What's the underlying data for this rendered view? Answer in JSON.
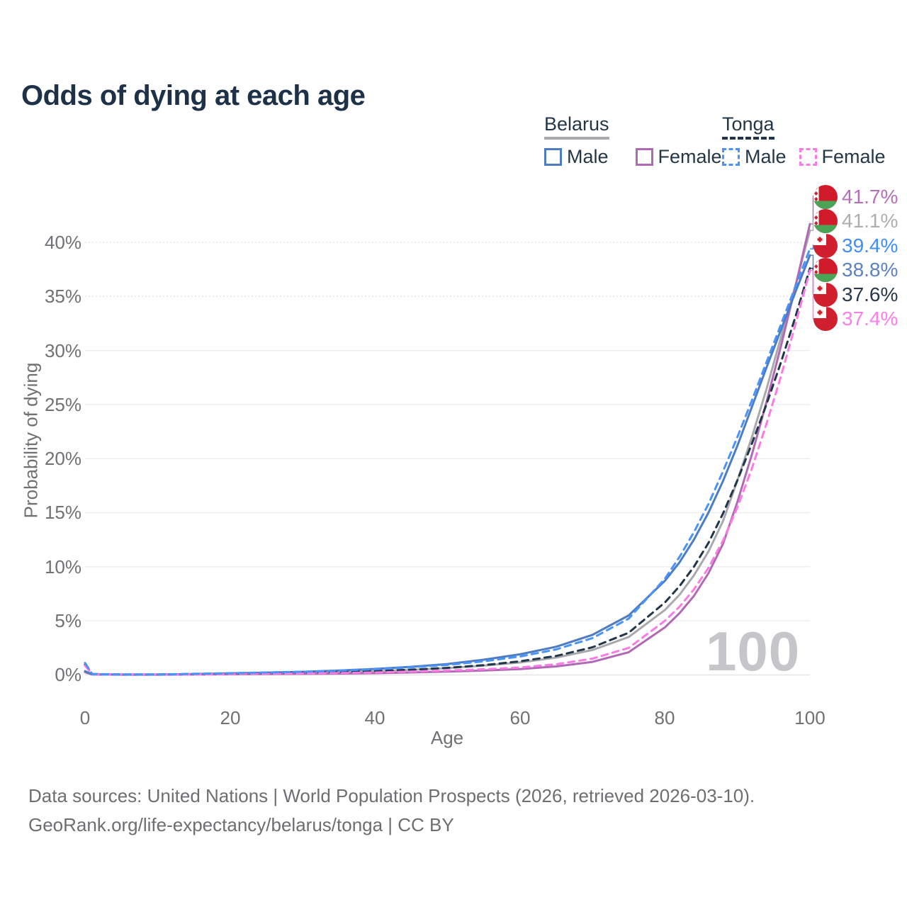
{
  "title": "Odds of dying at each age",
  "legend": {
    "belarus": {
      "label": "Belarus",
      "male": "Male",
      "female": "Female"
    },
    "tonga": {
      "label": "Tonga",
      "male": "Male",
      "female": "Female"
    }
  },
  "watermark": "100",
  "footer": {
    "line1": "Data sources: United Nations | World Population Prospects (2026, retrieved 2026-03-10).",
    "line2": "GeoRank.org/life-expectancy/belarus/tonga | CC BY"
  },
  "colors": {
    "belarus_male": "#4d7cc3",
    "belarus_female": "#b069b5",
    "belarus_both": "#a9a9ad",
    "tonga_male": "#4a93fa",
    "tonga_female": "#fb7ae4",
    "tonga_both": "#213649",
    "title_text": "#1d3148",
    "axis_text": "#707075",
    "grid": "#ececee",
    "watermark": "#c6c6ca"
  },
  "chart_data": {
    "type": "line",
    "title": "Odds of dying at each age",
    "xlabel": "Age",
    "ylabel": "Probability of dying",
    "xlim": [
      0,
      100
    ],
    "ylim_percent": [
      0,
      44
    ],
    "grid": true,
    "legend_position": "top-right",
    "x_tick_labels": [
      "0",
      "20",
      "40",
      "60",
      "80",
      "100"
    ],
    "y_tick_labels": [
      "0%",
      "5%",
      "10%",
      "15%",
      "20%",
      "25%",
      "30%",
      "35%",
      "40%"
    ],
    "y_tick_values": [
      0,
      5,
      10,
      15,
      20,
      25,
      30,
      35,
      40
    ],
    "ages": [
      0,
      1,
      5,
      10,
      15,
      20,
      25,
      30,
      35,
      40,
      45,
      50,
      55,
      60,
      65,
      70,
      75,
      80,
      82,
      84,
      86,
      88,
      90,
      92,
      94,
      96,
      98,
      100
    ],
    "series": [
      {
        "id": "belarus_both",
        "name": "Belarus (both sexes)",
        "country": "Belarus",
        "sex": "both",
        "color": "#a9a9ad",
        "dash": "solid",
        "values": [
          0.3,
          0.04,
          0.02,
          0.02,
          0.05,
          0.09,
          0.13,
          0.18,
          0.25,
          0.34,
          0.46,
          0.62,
          0.85,
          1.15,
          1.6,
          2.3,
          3.5,
          6.0,
          7.4,
          9.2,
          11.4,
          14.2,
          18.0,
          22.0,
          26.4,
          31.2,
          36.0,
          41.1
        ],
        "end_value_pct": 41.1
      },
      {
        "id": "belarus_female",
        "name": "Belarus Female",
        "country": "Belarus",
        "sex": "female",
        "color": "#b069b5",
        "dash": "solid",
        "values": [
          0.25,
          0.03,
          0.02,
          0.02,
          0.03,
          0.05,
          0.07,
          0.09,
          0.12,
          0.16,
          0.22,
          0.3,
          0.4,
          0.54,
          0.78,
          1.2,
          2.1,
          4.4,
          5.7,
          7.3,
          9.4,
          12.1,
          16.0,
          20.4,
          25.2,
          30.4,
          35.9,
          41.7
        ],
        "end_value_pct": 41.7
      },
      {
        "id": "belarus_male",
        "name": "Belarus Male",
        "country": "Belarus",
        "sex": "male",
        "color": "#4d7cc3",
        "dash": "solid",
        "values": [
          0.35,
          0.05,
          0.03,
          0.03,
          0.08,
          0.14,
          0.2,
          0.28,
          0.4,
          0.55,
          0.75,
          1.0,
          1.4,
          1.9,
          2.6,
          3.7,
          5.5,
          8.7,
          10.4,
          12.5,
          15.0,
          17.9,
          21.2,
          24.8,
          28.4,
          31.9,
          35.4,
          38.8
        ],
        "end_value_pct": 38.8
      },
      {
        "id": "tonga_both",
        "name": "Tonga (both sexes)",
        "country": "Tonga",
        "sex": "both",
        "color": "#213649",
        "dash": "dashed",
        "values": [
          0.95,
          0.07,
          0.03,
          0.03,
          0.07,
          0.11,
          0.15,
          0.2,
          0.27,
          0.36,
          0.48,
          0.65,
          0.9,
          1.25,
          1.75,
          2.55,
          3.9,
          6.7,
          8.2,
          10.0,
          12.2,
          14.9,
          18.0,
          21.4,
          25.0,
          28.9,
          33.1,
          37.6
        ],
        "end_value_pct": 37.6
      },
      {
        "id": "tonga_female",
        "name": "Tonga Female",
        "country": "Tonga",
        "sex": "female",
        "color": "#fb7ae4",
        "dash": "dashed",
        "values": [
          0.85,
          0.06,
          0.03,
          0.03,
          0.05,
          0.08,
          0.1,
          0.13,
          0.17,
          0.22,
          0.3,
          0.4,
          0.52,
          0.68,
          0.98,
          1.5,
          2.5,
          5.0,
          6.3,
          7.9,
          9.9,
          12.4,
          15.5,
          19.1,
          23.2,
          27.6,
          32.4,
          37.4
        ],
        "end_value_pct": 37.4
      },
      {
        "id": "tonga_male",
        "name": "Tonga Male",
        "country": "Tonga",
        "sex": "male",
        "color": "#4a93fa",
        "dash": "dashed",
        "values": [
          1.1,
          0.08,
          0.04,
          0.04,
          0.1,
          0.16,
          0.22,
          0.29,
          0.39,
          0.52,
          0.7,
          0.92,
          1.25,
          1.7,
          2.35,
          3.4,
          5.2,
          8.9,
          10.9,
          13.2,
          15.8,
          18.8,
          22.0,
          25.4,
          28.9,
          32.4,
          35.9,
          39.4
        ],
        "end_value_pct": 39.4
      }
    ],
    "end_labels": [
      {
        "text": "41.7%",
        "series": "belarus_female",
        "color": "#b36fb8",
        "flag": "belarus"
      },
      {
        "text": "41.1%",
        "series": "belarus_both",
        "color": "#aeaeb1",
        "flag": "belarus"
      },
      {
        "text": "39.4%",
        "series": "tonga_male",
        "color": "#3f8ef8",
        "flag": "tonga"
      },
      {
        "text": "38.8%",
        "series": "belarus_male",
        "color": "#5b83c2",
        "flag": "belarus"
      },
      {
        "text": "37.6%",
        "series": "tonga_both",
        "color": "#27384a",
        "flag": "tonga"
      },
      {
        "text": "37.4%",
        "series": "tonga_female",
        "color": "#fb7de8",
        "flag": "tonga"
      }
    ]
  }
}
